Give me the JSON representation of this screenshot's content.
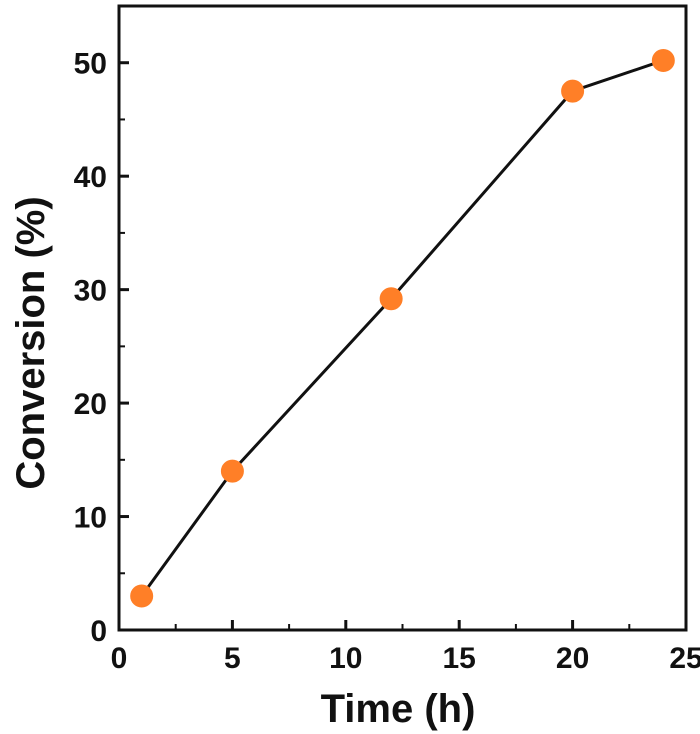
{
  "chart_data": {
    "type": "line",
    "title": "",
    "xlabel": "Time (h)",
    "ylabel": "Conversion (%)",
    "xlim": [
      0,
      25
    ],
    "ylim": [
      0,
      55
    ],
    "xticks": [
      0,
      5,
      10,
      15,
      20,
      25
    ],
    "yticks": [
      0,
      10,
      20,
      30,
      40,
      50
    ],
    "grid": false,
    "series": [
      {
        "x": [
          1,
          5,
          12,
          20,
          24
        ],
        "y": [
          3,
          14,
          29.2,
          47.5,
          50.2
        ],
        "line_color": "#111111",
        "marker_color": "#ff7f27",
        "marker": "circle"
      }
    ]
  }
}
